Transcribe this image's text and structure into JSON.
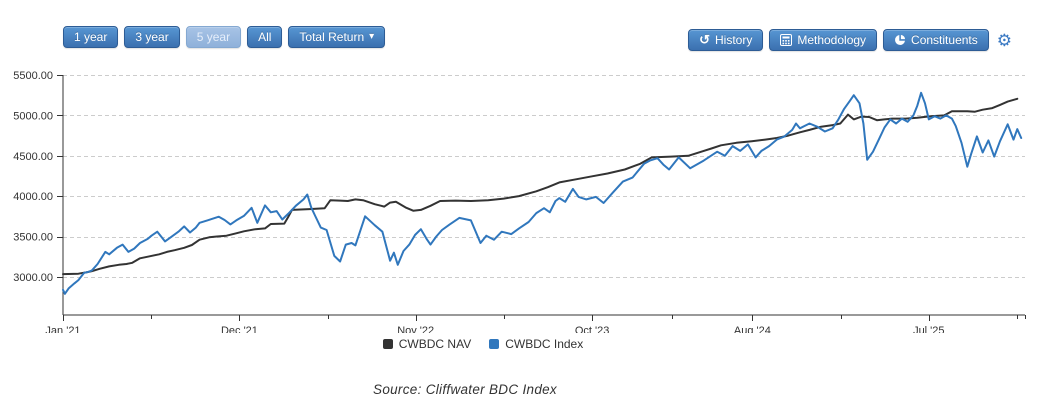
{
  "toolbar": {
    "range_buttons": [
      {
        "label": "1 year",
        "state": "normal"
      },
      {
        "label": "3 year",
        "state": "normal"
      },
      {
        "label": "5 year",
        "state": "disabled"
      },
      {
        "label": "All",
        "state": "normal"
      },
      {
        "label": "Total Return",
        "state": "normal",
        "has_caret": true,
        "caret": "▾"
      }
    ],
    "action_buttons": [
      {
        "label": "History",
        "icon": "history-icon"
      },
      {
        "label": "Methodology",
        "icon": "calculator-icon"
      },
      {
        "label": "Constituents",
        "icon": "pie-chart-icon"
      }
    ],
    "settings_icon": "gear-icon",
    "settings_glyph": "⚙"
  },
  "caption": "Source: Cliffwater BDC Index",
  "colors": {
    "nav_line": "#333333",
    "index_line": "#3077bd",
    "grid": "#cccccc",
    "axis": "#333333",
    "tick_label": "#333333",
    "button_blue": "#3b70af",
    "gear_blue": "#3a79c3"
  },
  "chart_data": {
    "type": "line",
    "title": "",
    "xlabel": "",
    "ylabel": "",
    "grid": "dashed-horizontal",
    "legend_position": "bottom",
    "x_axis": {
      "lim": [
        2021.0,
        2026.0
      ],
      "ticks": [
        {
          "label": "Jan '21",
          "t": 2021.0
        },
        {
          "label": "Dec '21",
          "t": 2021.917
        },
        {
          "label": "Nov '22",
          "t": 2022.833
        },
        {
          "label": "Oct '23",
          "t": 2023.75
        },
        {
          "label": "Aug '24",
          "t": 2024.583
        },
        {
          "label": "Jul '25",
          "t": 2025.5
        }
      ]
    },
    "y_axis": {
      "lim": [
        2528,
        5500
      ],
      "ticks": [
        3000,
        3500,
        4000,
        4500,
        5000,
        5500
      ],
      "labels": [
        "3000.00",
        "3500.00",
        "4000.00",
        "4500.00",
        "5000.00",
        "5500.00"
      ]
    },
    "series": [
      {
        "name": "CWBDC NAV",
        "color": "#333333",
        "points": [
          [
            2021.0,
            3035
          ],
          [
            2021.08,
            3040
          ],
          [
            2021.12,
            3055
          ],
          [
            2021.15,
            3070
          ],
          [
            2021.19,
            3100
          ],
          [
            2021.24,
            3130
          ],
          [
            2021.29,
            3150
          ],
          [
            2021.33,
            3160
          ],
          [
            2021.36,
            3175
          ],
          [
            2021.4,
            3230
          ],
          [
            2021.45,
            3255
          ],
          [
            2021.5,
            3280
          ],
          [
            2021.54,
            3310
          ],
          [
            2021.58,
            3330
          ],
          [
            2021.63,
            3360
          ],
          [
            2021.67,
            3395
          ],
          [
            2021.71,
            3460
          ],
          [
            2021.76,
            3490
          ],
          [
            2021.8,
            3500
          ],
          [
            2021.85,
            3510
          ],
          [
            2021.9,
            3540
          ],
          [
            2021.94,
            3565
          ],
          [
            2022.0,
            3590
          ],
          [
            2022.05,
            3600
          ],
          [
            2022.08,
            3655
          ],
          [
            2022.15,
            3660
          ],
          [
            2022.17,
            3740
          ],
          [
            2022.19,
            3830
          ],
          [
            2022.28,
            3840
          ],
          [
            2022.36,
            3850
          ],
          [
            2022.39,
            3950
          ],
          [
            2022.44,
            3945
          ],
          [
            2022.48,
            3940
          ],
          [
            2022.52,
            3960
          ],
          [
            2022.56,
            3950
          ],
          [
            2022.62,
            3900
          ],
          [
            2022.67,
            3870
          ],
          [
            2022.7,
            3920
          ],
          [
            2022.73,
            3930
          ],
          [
            2022.78,
            3860
          ],
          [
            2022.82,
            3820
          ],
          [
            2022.86,
            3830
          ],
          [
            2022.91,
            3880
          ],
          [
            2022.96,
            3940
          ],
          [
            2023.04,
            3945
          ],
          [
            2023.12,
            3940
          ],
          [
            2023.21,
            3950
          ],
          [
            2023.29,
            3970
          ],
          [
            2023.37,
            4000
          ],
          [
            2023.46,
            4060
          ],
          [
            2023.52,
            4110
          ],
          [
            2023.58,
            4170
          ],
          [
            2023.67,
            4210
          ],
          [
            2023.75,
            4245
          ],
          [
            2023.83,
            4280
          ],
          [
            2023.92,
            4330
          ],
          [
            2024.0,
            4400
          ],
          [
            2024.06,
            4480
          ],
          [
            2024.16,
            4490
          ],
          [
            2024.25,
            4500
          ],
          [
            2024.33,
            4560
          ],
          [
            2024.37,
            4590
          ],
          [
            2024.42,
            4630
          ],
          [
            2024.5,
            4660
          ],
          [
            2024.58,
            4680
          ],
          [
            2024.65,
            4700
          ],
          [
            2024.71,
            4720
          ],
          [
            2024.77,
            4750
          ],
          [
            2024.83,
            4790
          ],
          [
            2024.88,
            4820
          ],
          [
            2024.94,
            4860
          ],
          [
            2025.0,
            4880
          ],
          [
            2025.04,
            4900
          ],
          [
            2025.08,
            5010
          ],
          [
            2025.11,
            4950
          ],
          [
            2025.15,
            4985
          ],
          [
            2025.19,
            4980
          ],
          [
            2025.23,
            4940
          ],
          [
            2025.27,
            4950
          ],
          [
            2025.31,
            4960
          ],
          [
            2025.38,
            4960
          ],
          [
            2025.44,
            4970
          ],
          [
            2025.51,
            4990
          ],
          [
            2025.55,
            4995
          ],
          [
            2025.58,
            5000
          ],
          [
            2025.62,
            5050
          ],
          [
            2025.7,
            5050
          ],
          [
            2025.74,
            5045
          ],
          [
            2025.78,
            5070
          ],
          [
            2025.83,
            5090
          ],
          [
            2025.87,
            5130
          ],
          [
            2025.91,
            5170
          ],
          [
            2025.96,
            5205
          ]
        ]
      },
      {
        "name": "CWBDC Index",
        "color": "#3077bd",
        "points": [
          [
            2021.0,
            2840
          ],
          [
            2021.01,
            2790
          ],
          [
            2021.03,
            2860
          ],
          [
            2021.06,
            2920
          ],
          [
            2021.08,
            2960
          ],
          [
            2021.11,
            3050
          ],
          [
            2021.13,
            3060
          ],
          [
            2021.15,
            3080
          ],
          [
            2021.18,
            3160
          ],
          [
            2021.22,
            3310
          ],
          [
            2021.24,
            3280
          ],
          [
            2021.28,
            3360
          ],
          [
            2021.31,
            3400
          ],
          [
            2021.34,
            3310
          ],
          [
            2021.37,
            3350
          ],
          [
            2021.4,
            3420
          ],
          [
            2021.44,
            3470
          ],
          [
            2021.46,
            3510
          ],
          [
            2021.49,
            3560
          ],
          [
            2021.53,
            3440
          ],
          [
            2021.56,
            3490
          ],
          [
            2021.6,
            3560
          ],
          [
            2021.63,
            3625
          ],
          [
            2021.66,
            3550
          ],
          [
            2021.69,
            3610
          ],
          [
            2021.71,
            3670
          ],
          [
            2021.75,
            3700
          ],
          [
            2021.81,
            3745
          ],
          [
            2021.84,
            3705
          ],
          [
            2021.87,
            3650
          ],
          [
            2021.9,
            3700
          ],
          [
            2021.94,
            3755
          ],
          [
            2021.98,
            3855
          ],
          [
            2022.01,
            3670
          ],
          [
            2022.05,
            3885
          ],
          [
            2022.08,
            3800
          ],
          [
            2022.11,
            3815
          ],
          [
            2022.14,
            3710
          ],
          [
            2022.17,
            3780
          ],
          [
            2022.21,
            3880
          ],
          [
            2022.25,
            3960
          ],
          [
            2022.27,
            4020
          ],
          [
            2022.29,
            3860
          ],
          [
            2022.31,
            3760
          ],
          [
            2022.34,
            3610
          ],
          [
            2022.37,
            3580
          ],
          [
            2022.41,
            3260
          ],
          [
            2022.44,
            3190
          ],
          [
            2022.47,
            3400
          ],
          [
            2022.5,
            3420
          ],
          [
            2022.52,
            3390
          ],
          [
            2022.57,
            3750
          ],
          [
            2022.62,
            3640
          ],
          [
            2022.66,
            3560
          ],
          [
            2022.7,
            3200
          ],
          [
            2022.72,
            3300
          ],
          [
            2022.74,
            3150
          ],
          [
            2022.77,
            3320
          ],
          [
            2022.8,
            3400
          ],
          [
            2022.83,
            3520
          ],
          [
            2022.86,
            3590
          ],
          [
            2022.89,
            3470
          ],
          [
            2022.91,
            3400
          ],
          [
            2022.94,
            3500
          ],
          [
            2022.97,
            3580
          ],
          [
            2023.01,
            3650
          ],
          [
            2023.06,
            3730
          ],
          [
            2023.12,
            3700
          ],
          [
            2023.17,
            3420
          ],
          [
            2023.2,
            3510
          ],
          [
            2023.24,
            3460
          ],
          [
            2023.28,
            3560
          ],
          [
            2023.33,
            3530
          ],
          [
            2023.37,
            3600
          ],
          [
            2023.42,
            3680
          ],
          [
            2023.46,
            3790
          ],
          [
            2023.5,
            3850
          ],
          [
            2023.53,
            3800
          ],
          [
            2023.56,
            3940
          ],
          [
            2023.58,
            3975
          ],
          [
            2023.61,
            3930
          ],
          [
            2023.65,
            4090
          ],
          [
            2023.68,
            3990
          ],
          [
            2023.72,
            3960
          ],
          [
            2023.77,
            3990
          ],
          [
            2023.81,
            3915
          ],
          [
            2023.86,
            4050
          ],
          [
            2023.91,
            4180
          ],
          [
            2023.96,
            4230
          ],
          [
            2024.02,
            4400
          ],
          [
            2024.05,
            4440
          ],
          [
            2024.09,
            4470
          ],
          [
            2024.12,
            4390
          ],
          [
            2024.15,
            4330
          ],
          [
            2024.2,
            4480
          ],
          [
            2024.26,
            4345
          ],
          [
            2024.33,
            4440
          ],
          [
            2024.4,
            4550
          ],
          [
            2024.44,
            4500
          ],
          [
            2024.48,
            4620
          ],
          [
            2024.52,
            4560
          ],
          [
            2024.56,
            4640
          ],
          [
            2024.6,
            4480
          ],
          [
            2024.63,
            4560
          ],
          [
            2024.67,
            4620
          ],
          [
            2024.71,
            4700
          ],
          [
            2024.75,
            4740
          ],
          [
            2024.79,
            4820
          ],
          [
            2024.81,
            4900
          ],
          [
            2024.83,
            4840
          ],
          [
            2024.88,
            4900
          ],
          [
            2024.92,
            4860
          ],
          [
            2024.96,
            4800
          ],
          [
            2025.0,
            4840
          ],
          [
            2025.03,
            4950
          ],
          [
            2025.06,
            5080
          ],
          [
            2025.09,
            5180
          ],
          [
            2025.11,
            5250
          ],
          [
            2025.14,
            5150
          ],
          [
            2025.16,
            4900
          ],
          [
            2025.18,
            4450
          ],
          [
            2025.21,
            4550
          ],
          [
            2025.24,
            4700
          ],
          [
            2025.27,
            4850
          ],
          [
            2025.3,
            4950
          ],
          [
            2025.33,
            4900
          ],
          [
            2025.36,
            4960
          ],
          [
            2025.39,
            4920
          ],
          [
            2025.42,
            5000
          ],
          [
            2025.44,
            5120
          ],
          [
            2025.46,
            5280
          ],
          [
            2025.48,
            5150
          ],
          [
            2025.5,
            4950
          ],
          [
            2025.53,
            4990
          ],
          [
            2025.56,
            4960
          ],
          [
            2025.59,
            5000
          ],
          [
            2025.62,
            4960
          ],
          [
            2025.64,
            4870
          ],
          [
            2025.67,
            4660
          ],
          [
            2025.7,
            4365
          ],
          [
            2025.72,
            4520
          ],
          [
            2025.75,
            4740
          ],
          [
            2025.78,
            4540
          ],
          [
            2025.81,
            4690
          ],
          [
            2025.84,
            4490
          ],
          [
            2025.87,
            4680
          ],
          [
            2025.91,
            4890
          ],
          [
            2025.94,
            4700
          ],
          [
            2025.96,
            4830
          ],
          [
            2025.98,
            4720
          ]
        ]
      }
    ]
  }
}
